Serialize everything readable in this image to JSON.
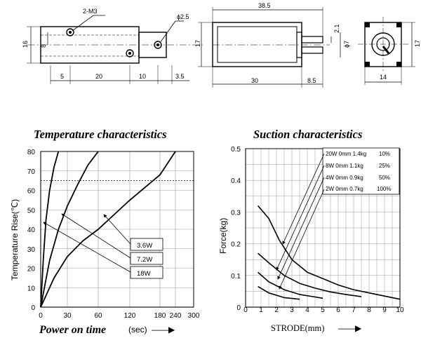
{
  "drawing": {
    "dims": {
      "screw": "2-M3",
      "hole": "ϕ2.5",
      "height_left": "16",
      "height_inner": "8",
      "len_a": "5",
      "len_b": "20",
      "len_c": "10",
      "len_d": "3.5",
      "total_len": "38.5",
      "body_len": "30",
      "shaft_len": "8.5",
      "height_side": "17",
      "shaft_gap": "2.1",
      "shaft_dia": "ϕ7",
      "end_height": "17",
      "end_width": "14"
    }
  },
  "temperature_chart": {
    "title": "Temperature characteristics",
    "ylabel": "Temperature Rise(℃)",
    "xlabel_bold": "Power on time",
    "xlabel_unit": "(sec)",
    "arrow": "——▶",
    "x_ticks": [
      "0",
      "30",
      "60",
      "120",
      "180",
      "240",
      "300"
    ],
    "y_ticks": [
      "0",
      "10",
      "20",
      "30",
      "40",
      "50",
      "60",
      "70",
      "80"
    ],
    "legend": [
      "3.6W",
      "7.2W",
      "18W"
    ]
  },
  "suction_chart": {
    "title": "Suction characteristics",
    "ylabel": "Force(kg)",
    "xlabel": "STRODE(mm)",
    "arrow": "——▶",
    "x_ticks": [
      "0",
      "1",
      "2",
      "3",
      "4",
      "5",
      "6",
      "7",
      "8",
      "9",
      "10"
    ],
    "y_ticks": [
      "0",
      "0.1",
      "0.2",
      "0.3",
      "0.4",
      "0.5"
    ],
    "legend": [
      {
        "label": "20W 0mm 1.4kg",
        "duty": "10%"
      },
      {
        "label": "8W 0mm 1.1kg",
        "duty": "25%"
      },
      {
        "label": "4W 0mm 0.9kg",
        "duty": "50%"
      },
      {
        "label": "2W 0mm 0.7kg",
        "duty": "100%"
      }
    ]
  },
  "chart_data": [
    {
      "type": "line",
      "title": "Temperature characteristics",
      "xlabel": "Power on time (sec)",
      "ylabel": "Temperature Rise(℃)",
      "x_ticks": [
        0,
        30,
        60,
        120,
        180,
        240,
        300
      ],
      "ylim": [
        0,
        80
      ],
      "grid": true,
      "reference_line_y": 65,
      "series": [
        {
          "name": "18W",
          "x": [
            0,
            3,
            6,
            10,
            15,
            20
          ],
          "y": [
            0,
            25,
            45,
            60,
            72,
            80
          ]
        },
        {
          "name": "7.2W",
          "x": [
            0,
            10,
            20,
            30,
            40,
            50,
            60
          ],
          "y": [
            0,
            24,
            40,
            52,
            63,
            73,
            80
          ]
        },
        {
          "name": "3.6W",
          "x": [
            0,
            15,
            30,
            45,
            60,
            120,
            180,
            240
          ],
          "y": [
            0,
            15,
            26,
            34,
            40,
            55,
            68,
            80
          ]
        }
      ]
    },
    {
      "type": "line",
      "title": "Suction characteristics",
      "xlabel": "STRODE(mm)",
      "ylabel": "Force(kg)",
      "xlim": [
        0,
        10
      ],
      "ylim": [
        0,
        0.5
      ],
      "grid": true,
      "series": [
        {
          "name": "20W 0mm 1.4kg 10%",
          "x": [
            0.8,
            1.5,
            2.2,
            3,
            4,
            5,
            6,
            7,
            8,
            9,
            10
          ],
          "y": [
            0.32,
            0.28,
            0.21,
            0.15,
            0.11,
            0.09,
            0.07,
            0.055,
            0.045,
            0.035,
            0.025
          ]
        },
        {
          "name": "8W 0mm 1.1kg 25%",
          "x": [
            0.8,
            1.5,
            2.5,
            3.5,
            4.5,
            5.5,
            6.5,
            7.5
          ],
          "y": [
            0.17,
            0.14,
            0.1,
            0.075,
            0.06,
            0.048,
            0.04,
            0.033
          ]
        },
        {
          "name": "4W 0mm 0.9kg 50%",
          "x": [
            0.8,
            1.5,
            2.5,
            3.5,
            4.5,
            5
          ],
          "y": [
            0.11,
            0.08,
            0.055,
            0.04,
            0.032,
            0.028
          ]
        },
        {
          "name": "2W 0mm 0.7kg 100%",
          "x": [
            0.8,
            1.5,
            2.5,
            3.5
          ],
          "y": [
            0.065,
            0.045,
            0.03,
            0.025
          ]
        }
      ]
    }
  ]
}
